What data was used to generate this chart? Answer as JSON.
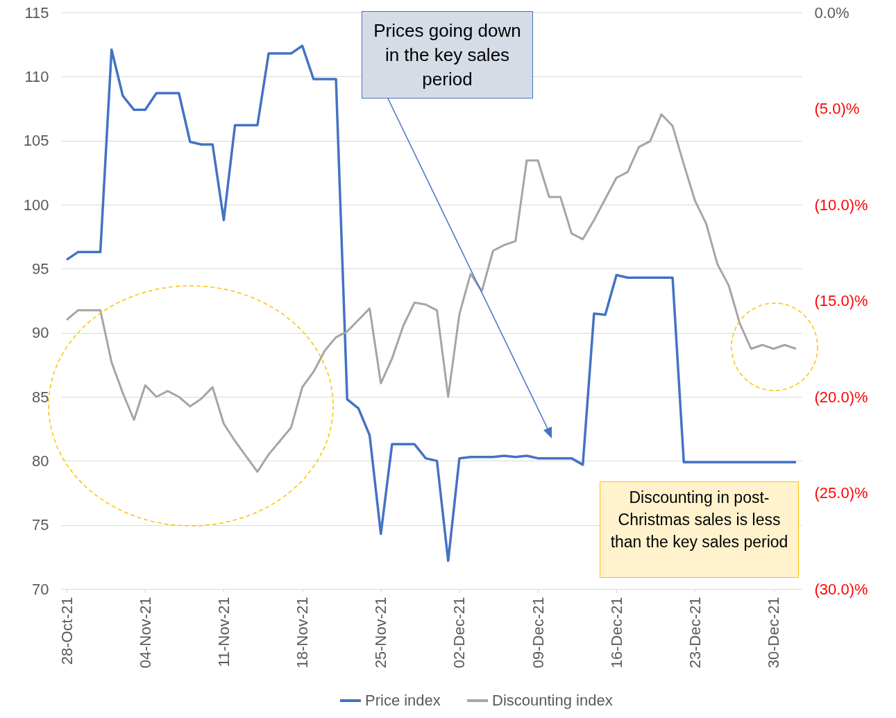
{
  "chart_data": {
    "type": "line",
    "categories": [
      "28-Oct-21",
      null,
      null,
      null,
      null,
      null,
      null,
      "04-Nov-21",
      null,
      null,
      null,
      null,
      null,
      null,
      "11-Nov-21",
      null,
      null,
      null,
      null,
      null,
      null,
      "18-Nov-21",
      null,
      null,
      null,
      null,
      null,
      null,
      "25-Nov-21",
      null,
      null,
      null,
      null,
      null,
      null,
      "02-Dec-21",
      null,
      null,
      null,
      null,
      null,
      null,
      "09-Dec-21",
      null,
      null,
      null,
      null,
      null,
      null,
      "16-Dec-21",
      null,
      null,
      null,
      null,
      null,
      null,
      "23-Dec-21",
      null,
      null,
      null,
      null,
      null,
      null,
      "30-Dec-21",
      null,
      null
    ],
    "series": [
      {
        "name": "Price index",
        "color": "#4472c4",
        "values": [
          95.7,
          96.3,
          96.3,
          96.3,
          112.1,
          108.5,
          107.4,
          107.4,
          108.7,
          108.7,
          108.7,
          104.9,
          104.7,
          104.7,
          98.8,
          106.2,
          106.2,
          106.2,
          111.8,
          111.8,
          111.8,
          112.4,
          109.8,
          109.8,
          109.8,
          84.8,
          84.1,
          82.0,
          74.3,
          81.3,
          81.3,
          81.3,
          80.2,
          80.0,
          72.2,
          80.2,
          80.3,
          80.3,
          80.3,
          80.4,
          80.3,
          80.4,
          80.2,
          80.2,
          80.2,
          80.2,
          79.7,
          91.5,
          91.4,
          94.5,
          94.3,
          94.3,
          94.3,
          94.3,
          94.3,
          79.9,
          79.9,
          79.9,
          79.9,
          79.9,
          79.9,
          79.9,
          79.9,
          79.9,
          79.9,
          79.9
        ]
      },
      {
        "name": "Discounting index",
        "color": "#a5a5a5",
        "axis": "y2",
        "values": [
          -16.0,
          -15.5,
          -15.5,
          -15.5,
          -18.2,
          -19.8,
          -21.2,
          -19.4,
          -20.0,
          -19.7,
          -20.0,
          -20.5,
          -20.1,
          -19.5,
          -21.4,
          -22.3,
          -23.1,
          -23.9,
          -23.0,
          -22.3,
          -21.6,
          -19.5,
          -18.7,
          -17.6,
          -16.9,
          -16.6,
          -16.0,
          -15.4,
          -19.3,
          -18.0,
          -16.3,
          -15.1,
          -15.2,
          -15.5,
          -20.0,
          -15.7,
          -13.6,
          -14.5,
          -12.4,
          -12.1,
          -11.9,
          -7.7,
          -7.7,
          -9.6,
          -9.6,
          -11.5,
          -11.8,
          -10.8,
          -9.7,
          -8.6,
          -8.3,
          -7.0,
          -6.7,
          -5.3,
          -5.9,
          -7.9,
          -9.8,
          -11.0,
          -13.1,
          -14.2,
          -16.2,
          -17.5,
          -17.3,
          -17.5,
          -17.3,
          -17.5
        ]
      }
    ],
    "ylim": [
      70,
      115
    ],
    "yticks": [
      70,
      75,
      80,
      85,
      90,
      95,
      100,
      105,
      110,
      115
    ],
    "y2lim": [
      -30,
      0
    ],
    "y2ticks": [
      {
        "value": -30,
        "label": "(30.0)%"
      },
      {
        "value": -25,
        "label": "(25.0)%"
      },
      {
        "value": -20,
        "label": "(20.0)%"
      },
      {
        "value": -15,
        "label": "(15.0)%"
      },
      {
        "value": -10,
        "label": "(10.0)%"
      },
      {
        "value": -5,
        "label": "(5.0)%"
      },
      {
        "value": 0,
        "label": "0.0%"
      }
    ],
    "grid": "y",
    "legend": "bottom",
    "annotations": [
      "Prices going down in the key sales period",
      "Discounting in post-Christmas sales is less than the key sales period"
    ]
  }
}
